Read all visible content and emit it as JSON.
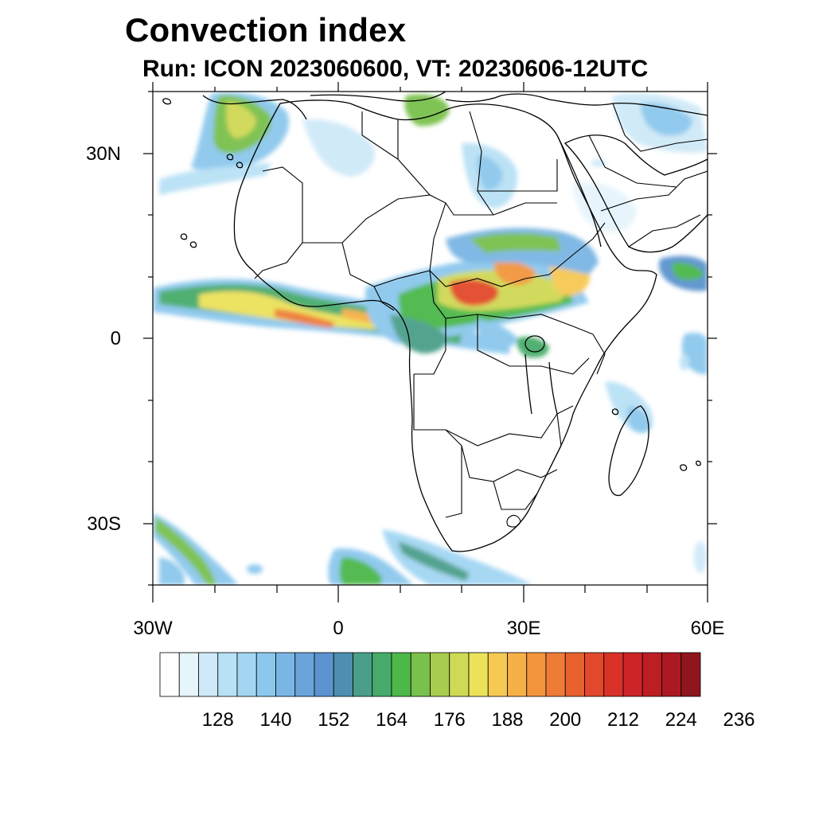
{
  "title": "Convection index",
  "subtitle": "Run: ICON 2023060600,  VT: 20230606-12UTC",
  "axes": {
    "lat_labels": [
      "30N",
      "0",
      "30S"
    ],
    "lat_values": [
      30,
      0,
      -30
    ],
    "lon_labels": [
      "30W",
      "0",
      "30E",
      "60E"
    ],
    "lon_values": [
      -30,
      0,
      30,
      60
    ],
    "lon_range": [
      -30,
      60
    ],
    "lat_range": [
      -40,
      40
    ]
  },
  "colorbar": {
    "colors": [
      "#ffffff",
      "#e6f4fb",
      "#cfe9f8",
      "#b9e1f5",
      "#a2d6f3",
      "#8cc8ed",
      "#7ab6e4",
      "#6aa4da",
      "#5b93cf",
      "#4e8fb0",
      "#4b9f8a",
      "#46ab6a",
      "#4cb84a",
      "#79c04c",
      "#a8cc4e",
      "#d0d955",
      "#ece25a",
      "#f6c953",
      "#f5b047",
      "#f2953d",
      "#ee7b36",
      "#e8612f",
      "#e2482b",
      "#da3129",
      "#cd2427",
      "#bd1e24",
      "#ab1a22",
      "#8e161c"
    ],
    "labels": [
      "128",
      "140",
      "152",
      "164",
      "176",
      "188",
      "200",
      "212",
      "224",
      "236"
    ]
  },
  "map_data": {
    "convection_cells": [
      {
        "lon": -24,
        "lat": 7,
        "level": 3
      },
      {
        "lon": -12,
        "lat": 8,
        "level": 5
      },
      {
        "lon": -6,
        "lat": 4,
        "level": 7
      },
      {
        "lon": 3,
        "lat": 4,
        "level": 6
      },
      {
        "lon": 10,
        "lat": 3,
        "level": 5
      },
      {
        "lon": 22,
        "lat": 8,
        "level": 8
      },
      {
        "lon": 28,
        "lat": 11,
        "level": 7
      },
      {
        "lon": 36,
        "lat": 10,
        "level": 6
      },
      {
        "lon": -16,
        "lat": 35,
        "level": 4
      },
      {
        "lon": 8,
        "lat": -34,
        "level": 3
      }
    ]
  }
}
